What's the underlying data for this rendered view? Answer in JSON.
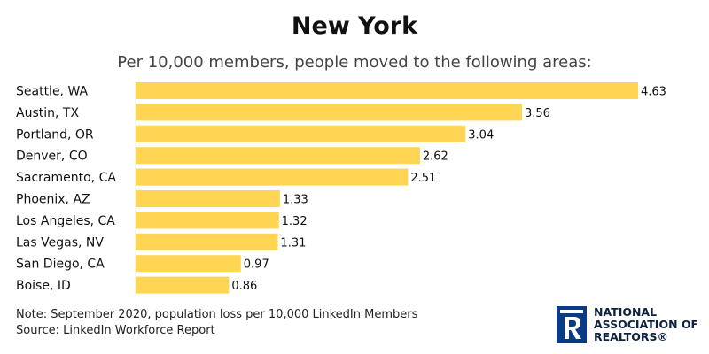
{
  "title": "New York",
  "subtitle": "Per 10,000 members, people moved to the following areas:",
  "note": "Note: September 2020, population loss per 10,000 LinkedIn Members",
  "source": "Source: LinkedIn Workforce Report",
  "logo": {
    "line1": "NATIONAL",
    "line2": "ASSOCIATION OF",
    "line3": "REALTORS®",
    "icon": "realtor-R-logo-icon"
  },
  "colors": {
    "bar": "#FED653",
    "logo_blue": "#0a3b85",
    "text": "#111111"
  },
  "chart_data": {
    "type": "bar",
    "orientation": "horizontal",
    "title": "New York",
    "subtitle": "Per 10,000 members, people moved to the following areas:",
    "categories": [
      "Seattle, WA",
      "Austin, TX",
      "Portland, OR",
      "Denver, CO",
      "Sacramento, CA",
      "Phoenix, AZ",
      "Los Angeles, CA",
      "Las Vegas, NV",
      "San Diego, CA",
      "Boise, ID"
    ],
    "values": [
      4.63,
      3.56,
      3.04,
      2.62,
      2.51,
      1.33,
      1.32,
      1.31,
      0.97,
      0.86
    ],
    "value_labels": [
      "4.63",
      "3.56",
      "3.04",
      "2.62",
      "2.51",
      "1.33",
      "1.32",
      "1.31",
      "0.97",
      "0.86"
    ],
    "xlim": [
      0,
      4.63
    ],
    "grid": false,
    "legend": "none"
  }
}
